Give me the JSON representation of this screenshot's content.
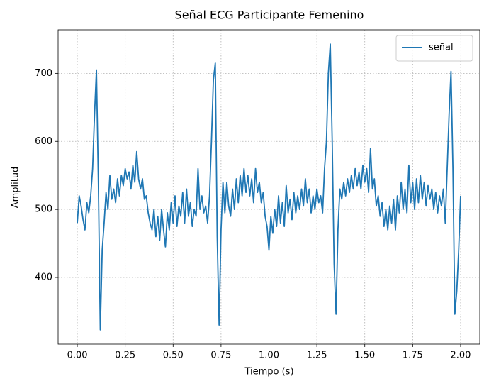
{
  "chart_data": {
    "type": "line",
    "title": "Señal ECG Participante Femenino",
    "x_label": "Tiempo (s)",
    "y_label": "Amplitud",
    "x": [
      0.0,
      0.01,
      0.02,
      0.03,
      0.04,
      0.05,
      0.06,
      0.07,
      0.08,
      0.09,
      0.1,
      0.11,
      0.12,
      0.13,
      0.14,
      0.15,
      0.16,
      0.17,
      0.18,
      0.19,
      0.2,
      0.21,
      0.22,
      0.23,
      0.24,
      0.25,
      0.26,
      0.27,
      0.28,
      0.29,
      0.3,
      0.31,
      0.32,
      0.33,
      0.34,
      0.35,
      0.36,
      0.37,
      0.38,
      0.39,
      0.4,
      0.41,
      0.42,
      0.43,
      0.44,
      0.45,
      0.46,
      0.47,
      0.48,
      0.49,
      0.5,
      0.51,
      0.52,
      0.53,
      0.54,
      0.55,
      0.56,
      0.57,
      0.58,
      0.59,
      0.6,
      0.61,
      0.62,
      0.63,
      0.64,
      0.65,
      0.66,
      0.67,
      0.68,
      0.69,
      0.7,
      0.71,
      0.72,
      0.73,
      0.74,
      0.75,
      0.76,
      0.77,
      0.78,
      0.79,
      0.8,
      0.81,
      0.82,
      0.83,
      0.84,
      0.85,
      0.86,
      0.87,
      0.88,
      0.89,
      0.9,
      0.91,
      0.92,
      0.93,
      0.94,
      0.95,
      0.96,
      0.97,
      0.98,
      0.99,
      1.0,
      1.01,
      1.02,
      1.03,
      1.04,
      1.05,
      1.06,
      1.07,
      1.08,
      1.09,
      1.1,
      1.11,
      1.12,
      1.13,
      1.14,
      1.15,
      1.16,
      1.17,
      1.18,
      1.19,
      1.2,
      1.21,
      1.22,
      1.23,
      1.24,
      1.25,
      1.26,
      1.27,
      1.28,
      1.29,
      1.3,
      1.31,
      1.32,
      1.33,
      1.34,
      1.35,
      1.36,
      1.37,
      1.38,
      1.39,
      1.4,
      1.41,
      1.42,
      1.43,
      1.44,
      1.45,
      1.46,
      1.47,
      1.48,
      1.49,
      1.5,
      1.51,
      1.52,
      1.53,
      1.54,
      1.55,
      1.56,
      1.57,
      1.58,
      1.59,
      1.6,
      1.61,
      1.62,
      1.63,
      1.64,
      1.65,
      1.66,
      1.67,
      1.68,
      1.69,
      1.7,
      1.71,
      1.72,
      1.73,
      1.74,
      1.75,
      1.76,
      1.77,
      1.78,
      1.79,
      1.8,
      1.81,
      1.82,
      1.83,
      1.84,
      1.85,
      1.86,
      1.87,
      1.88,
      1.89,
      1.9,
      1.91,
      1.92,
      1.93,
      1.94,
      1.95,
      1.96,
      1.97,
      1.98,
      1.99,
      2.0
    ],
    "series": [
      {
        "name": "señal",
        "color": "#1f77b4",
        "values": [
          480,
          520,
          505,
          485,
          470,
          510,
          495,
          520,
          560,
          640,
          705,
          540,
          323,
          440,
          480,
          525,
          500,
          550,
          515,
          530,
          510,
          545,
          520,
          550,
          535,
          560,
          545,
          555,
          530,
          565,
          540,
          585,
          545,
          530,
          545,
          515,
          520,
          495,
          480,
          470,
          500,
          460,
          490,
          455,
          500,
          470,
          445,
          495,
          470,
          510,
          480,
          520,
          475,
          505,
          490,
          525,
          480,
          530,
          490,
          510,
          475,
          500,
          490,
          560,
          500,
          520,
          495,
          505,
          480,
          520,
          600,
          690,
          715,
          460,
          330,
          470,
          540,
          495,
          540,
          505,
          490,
          530,
          500,
          545,
          510,
          550,
          520,
          560,
          525,
          550,
          520,
          545,
          510,
          560,
          525,
          540,
          510,
          525,
          490,
          475,
          440,
          490,
          465,
          500,
          475,
          520,
          480,
          510,
          475,
          535,
          495,
          515,
          485,
          525,
          495,
          520,
          500,
          530,
          505,
          545,
          510,
          530,
          495,
          520,
          500,
          530,
          510,
          520,
          495,
          560,
          600,
          700,
          743,
          600,
          420,
          346,
          470,
          530,
          515,
          540,
          520,
          545,
          525,
          550,
          530,
          560,
          535,
          555,
          530,
          565,
          540,
          560,
          525,
          590,
          530,
          545,
          505,
          520,
          490,
          510,
          475,
          500,
          470,
          505,
          480,
          515,
          470,
          520,
          495,
          540,
          500,
          530,
          495,
          565,
          510,
          540,
          500,
          545,
          510,
          550,
          515,
          540,
          505,
          535,
          515,
          530,
          500,
          525,
          495,
          520,
          505,
          530,
          480,
          560,
          640,
          703,
          560,
          346,
          380,
          440,
          520
        ]
      }
    ],
    "xlim": [
      -0.1,
      2.1
    ],
    "ylim": [
      302,
      764
    ],
    "xticks": [
      {
        "value": 0,
        "label": "0.00"
      },
      {
        "value": 0.25,
        "label": "0.25"
      },
      {
        "value": 0.5,
        "label": "0.50"
      },
      {
        "value": 0.75,
        "label": "0.75"
      },
      {
        "value": 1,
        "label": "1.00"
      },
      {
        "value": 1.25,
        "label": "1.25"
      },
      {
        "value": 1.5,
        "label": "1.50"
      },
      {
        "value": 1.75,
        "label": "1.75"
      },
      {
        "value": 2,
        "label": "2.00"
      }
    ],
    "yticks": [
      400,
      500,
      600,
      700
    ],
    "grid": true,
    "legend": "upper right"
  }
}
